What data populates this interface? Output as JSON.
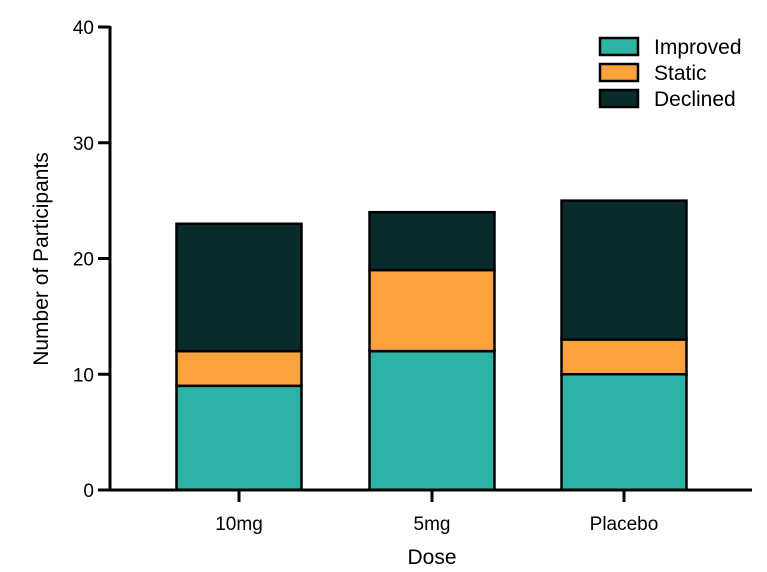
{
  "chart_data": {
    "type": "bar",
    "stacked": true,
    "categories": [
      "10mg",
      "5mg",
      "Placebo"
    ],
    "series": [
      {
        "name": "Improved",
        "values": [
          9,
          12,
          10
        ],
        "color": "#2db3a6"
      },
      {
        "name": "Static",
        "values": [
          3,
          7,
          3
        ],
        "color": "#fba23e"
      },
      {
        "name": "Declined",
        "values": [
          11,
          5,
          12
        ],
        "color": "#082c2b"
      }
    ],
    "xlabel": "Dose",
    "ylabel": "Number of Participants",
    "ylim": [
      0,
      40
    ],
    "yticks": [
      0,
      10,
      20,
      30,
      40
    ],
    "legend_position": "top-right",
    "grid": false
  }
}
